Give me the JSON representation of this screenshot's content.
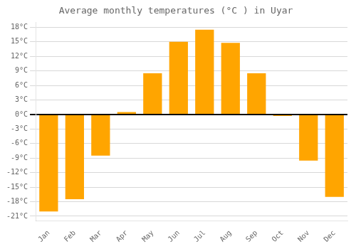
{
  "chart_data": {
    "type": "bar",
    "title": "Average monthly temperatures (°C ) in Uyar",
    "categories": [
      "Jan",
      "Feb",
      "Mar",
      "Apr",
      "May",
      "Jun",
      "Jul",
      "Aug",
      "Sep",
      "Oct",
      "Nov",
      "Dec"
    ],
    "values": [
      -20,
      -17.5,
      -8.5,
      0.5,
      8.5,
      15,
      17.5,
      14.8,
      8.5,
      -0.3,
      -9.5,
      -17
    ],
    "color": "#FFA500",
    "ylim": [
      -22,
      19
    ],
    "yticks": [
      {
        "value": -21,
        "label": "-21°C"
      },
      {
        "value": -18,
        "label": "-18°C"
      },
      {
        "value": -15,
        "label": "-15°C"
      },
      {
        "value": -12,
        "label": "-12°C"
      },
      {
        "value": -9,
        "label": "-9°C"
      },
      {
        "value": -6,
        "label": "-6°C"
      },
      {
        "value": -3,
        "label": "-3°C"
      },
      {
        "value": 0,
        "label": "0°C"
      },
      {
        "value": 3,
        "label": "3°C"
      },
      {
        "value": 6,
        "label": "6°C"
      },
      {
        "value": 9,
        "label": "9°C"
      },
      {
        "value": 12,
        "label": "12°C"
      },
      {
        "value": 15,
        "label": "15°C"
      },
      {
        "value": 18,
        "label": "18°C"
      }
    ],
    "grid": true
  }
}
